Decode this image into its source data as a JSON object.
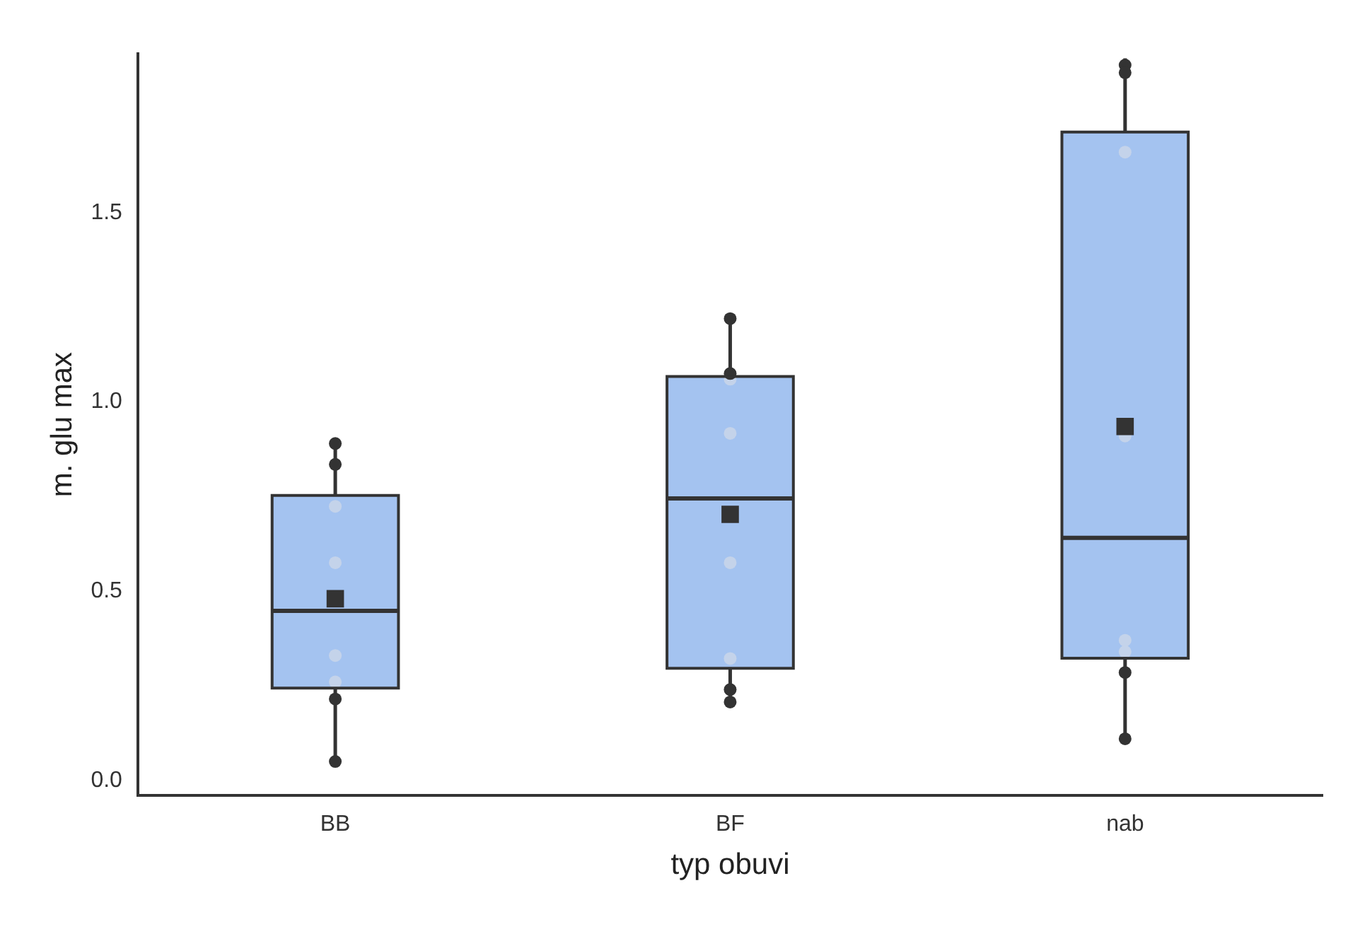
{
  "chart_data": {
    "type": "box",
    "xlabel": "typ obuvi",
    "ylabel": "m. glu max",
    "categories": [
      "BB",
      "BF",
      "nab"
    ],
    "ylim": [
      -0.04,
      1.92
    ],
    "yticks": [
      {
        "value": 0,
        "label": "0.0"
      },
      0.5,
      {
        "value": 1,
        "label": "1.0"
      },
      1.5
    ],
    "grid": false,
    "legend": false,
    "marker": "circle",
    "series": [
      {
        "type": "box",
        "color": "#a4c3f0",
        "boxes": [
          {
            "low": 0.05,
            "q1": 0.244,
            "median": 0.448,
            "q3": 0.753,
            "high": 0.89,
            "mean": 0.48
          },
          {
            "low": 0.207,
            "q1": 0.296,
            "median": 0.745,
            "q3": 1.067,
            "high": 1.22,
            "mean": 0.703
          },
          {
            "low": 0.11,
            "q1": 0.323,
            "median": 0.641,
            "q3": 1.713,
            "high": 1.908,
            "mean": 0.935
          }
        ]
      },
      {
        "type": "scatter",
        "color": "#333333",
        "x": [
          "BB",
          "BB",
          "BB",
          "BB",
          "BF",
          "BF",
          "BF",
          "BF",
          "nab",
          "nab",
          "nab",
          "nab"
        ],
        "values": [
          0.89,
          0.835,
          0.215,
          0.05,
          1.22,
          1.075,
          0.207,
          0.24,
          1.89,
          1.87,
          0.285,
          0.11
        ]
      },
      {
        "type": "scatter",
        "color": "#c4d3ea",
        "x": [
          "BB",
          "BB",
          "BB",
          "BB",
          "BF",
          "BF",
          "BF",
          "BF",
          "nab",
          "nab",
          "nab",
          "nab"
        ],
        "values": [
          0.724,
          0.575,
          0.33,
          0.26,
          1.06,
          0.917,
          0.575,
          0.322,
          1.66,
          0.91,
          0.37,
          0.34
        ]
      }
    ]
  }
}
